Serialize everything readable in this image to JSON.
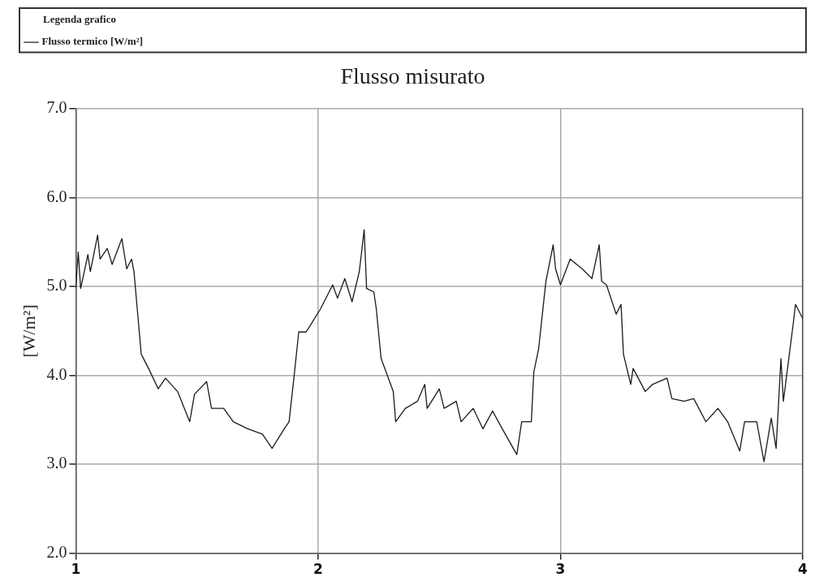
{
  "chart_data": {
    "type": "line",
    "title": "Flusso misurato",
    "ylabel": "[W/m²]",
    "legend_title": "Legenda grafico",
    "legend": "top left",
    "grid": true,
    "marker": "none",
    "line_style": "solid",
    "xlim": [
      1,
      4
    ],
    "xticks": [
      1,
      2,
      3,
      4
    ],
    "ylim": [
      2,
      7
    ],
    "yticks": [
      {
        "value": 2,
        "label": "2.0"
      },
      {
        "value": 3,
        "label": "3.0"
      },
      {
        "value": 4,
        "label": "4.0"
      },
      {
        "value": 5,
        "label": "5.0"
      },
      {
        "value": 6,
        "label": "6.0"
      },
      {
        "value": 7,
        "label": "7.0"
      }
    ],
    "x": [
      1.0,
      1.01,
      1.02,
      1.05,
      1.06,
      1.09,
      1.1,
      1.13,
      1.15,
      1.19,
      1.21,
      1.23,
      1.24,
      1.27,
      1.3,
      1.34,
      1.37,
      1.42,
      1.47,
      1.49,
      1.54,
      1.56,
      1.61,
      1.65,
      1.71,
      1.77,
      1.81,
      1.86,
      1.88,
      1.9,
      1.92,
      1.95,
      1.96,
      2.01,
      2.06,
      2.08,
      2.11,
      2.14,
      2.17,
      2.19,
      2.2,
      2.23,
      2.24,
      2.26,
      2.31,
      2.32,
      2.36,
      2.41,
      2.44,
      2.45,
      2.5,
      2.52,
      2.57,
      2.59,
      2.64,
      2.68,
      2.72,
      2.76,
      2.82,
      2.84,
      2.88,
      2.89,
      2.91,
      2.94,
      2.97,
      2.98,
      3.0,
      3.04,
      3.09,
      3.13,
      3.16,
      3.17,
      3.19,
      3.23,
      3.25,
      3.26,
      3.29,
      3.3,
      3.35,
      3.38,
      3.44,
      3.46,
      3.51,
      3.55,
      3.6,
      3.65,
      3.69,
      3.74,
      3.76,
      3.81,
      3.84,
      3.87,
      3.89,
      3.91,
      3.92,
      3.96,
      3.97,
      4.0
    ],
    "series": [
      {
        "name": "Flusso termico [W/m²]",
        "color": "#1a1a1a",
        "values": [
          4.98,
          5.39,
          4.98,
          5.36,
          5.17,
          5.58,
          5.31,
          5.43,
          5.25,
          5.54,
          5.2,
          5.31,
          5.17,
          4.24,
          4.08,
          3.85,
          3.97,
          3.82,
          3.48,
          3.79,
          3.93,
          3.63,
          3.63,
          3.48,
          3.4,
          3.34,
          3.18,
          3.4,
          3.48,
          3.97,
          4.49,
          4.49,
          4.53,
          4.75,
          5.02,
          4.87,
          5.09,
          4.83,
          5.17,
          5.64,
          4.98,
          4.94,
          4.75,
          4.19,
          3.82,
          3.48,
          3.63,
          3.71,
          3.9,
          3.63,
          3.85,
          3.63,
          3.71,
          3.48,
          3.63,
          3.4,
          3.6,
          3.4,
          3.11,
          3.48,
          3.48,
          4.04,
          4.3,
          5.06,
          5.47,
          5.2,
          5.02,
          5.31,
          5.2,
          5.09,
          5.47,
          5.06,
          5.02,
          4.69,
          4.8,
          4.24,
          3.9,
          4.08,
          3.82,
          3.9,
          3.97,
          3.74,
          3.71,
          3.74,
          3.48,
          3.63,
          3.48,
          3.15,
          3.48,
          3.48,
          3.03,
          3.52,
          3.18,
          4.19,
          3.71,
          4.57,
          4.8,
          4.64
        ]
      }
    ]
  }
}
